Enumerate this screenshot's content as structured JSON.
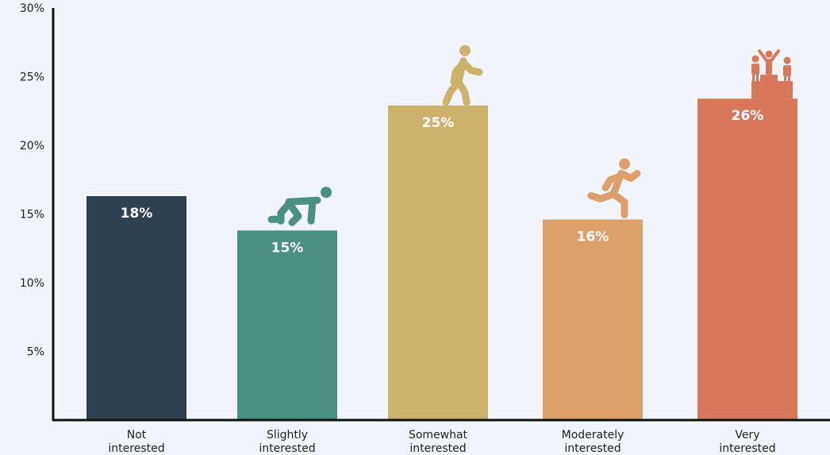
{
  "chart_data": {
    "type": "bar",
    "categories": [
      [
        "Not",
        "interested"
      ],
      [
        "Slightly",
        "interested"
      ],
      [
        "Somewhat",
        "interested"
      ],
      [
        "Moderately",
        "interested"
      ],
      [
        "Very",
        "interested"
      ]
    ],
    "values": [
      16.3,
      13.8,
      22.9,
      14.6,
      23.4
    ],
    "data_labels": [
      "18%",
      "15%",
      "25%",
      "16%",
      "26%"
    ],
    "colors": [
      "#2f4050",
      "#4a9184",
      "#cdb26c",
      "#dea06a",
      "#d8785b"
    ],
    "icons": [
      "none",
      "crouching-start-icon",
      "walking-person-icon",
      "running-person-icon",
      "podium-winners-icon"
    ],
    "ylim": [
      0,
      30
    ],
    "yticks": [
      5,
      10,
      15,
      20,
      25,
      30
    ],
    "ytick_labels": [
      "5%",
      "10%",
      "15%",
      "20%",
      "25%",
      "30%"
    ],
    "title": "",
    "xlabel": "",
    "ylabel": "",
    "grid": false,
    "legend": "none"
  }
}
